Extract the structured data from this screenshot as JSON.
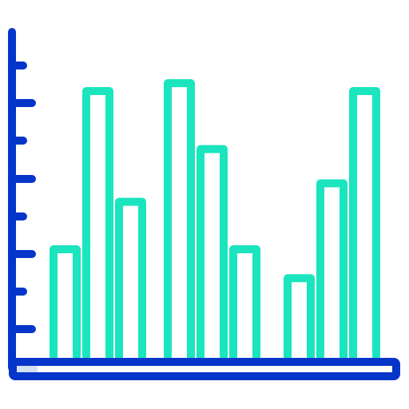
{
  "icon": {
    "name": "bar-chart-icon",
    "colors": {
      "axis": "#0635c9",
      "bars": "#1ae5be",
      "axis_highlight": "#d4e1f4",
      "background": "#ffffff"
    },
    "bar_groups": [
      {
        "name": "group-1",
        "levels": [
          0.4,
          1.0,
          0.58
        ]
      },
      {
        "name": "group-2",
        "levels": [
          1.03,
          0.78,
          0.4
        ]
      },
      {
        "name": "group-3",
        "levels": [
          0.29,
          0.65,
          1.0
        ]
      }
    ],
    "axis_tick_count": 8
  }
}
